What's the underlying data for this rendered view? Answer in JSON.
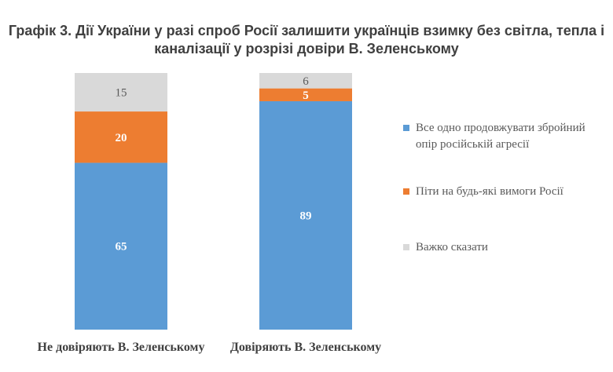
{
  "title_lines": [
    "Графік 3. Дії України у разі спроб Росії залишити українців взимку без світла, тепла і",
    "каналізації у розрізі довіри В. Зеленському"
  ],
  "chart_data": {
    "type": "bar",
    "stacked": true,
    "percent": true,
    "categories": [
      "Не довіряють В. Зеленському",
      "Довіряють В. Зеленському"
    ],
    "series": [
      {
        "name": "Все одно продовжувати збройний опір російській агресії",
        "values": [
          65,
          89
        ],
        "color": "#5b9bd5",
        "label_color": "#ffffff"
      },
      {
        "name": "Піти на будь-які вимоги Росії",
        "values": [
          20,
          5
        ],
        "color": "#ed7d31",
        "label_color": "#ffffff"
      },
      {
        "name": "Важко сказати",
        "values": [
          15,
          6
        ],
        "color": "#d9d9d9",
        "label_color": "#595959"
      }
    ],
    "ylim": [
      0,
      100
    ],
    "legend_position": "right",
    "grid": false
  }
}
